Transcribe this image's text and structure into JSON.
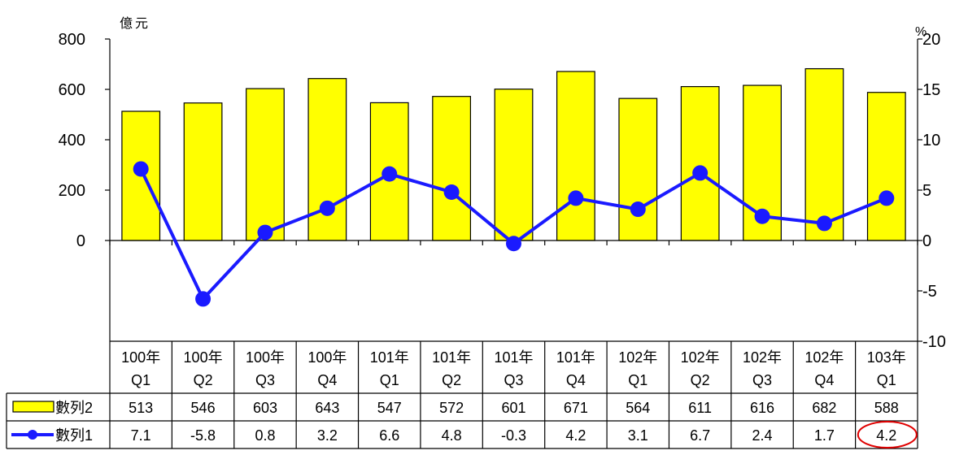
{
  "chart_data": {
    "type": "bar",
    "categories": [
      [
        "100年",
        "Q1"
      ],
      [
        "100年",
        "Q2"
      ],
      [
        "100年",
        "Q3"
      ],
      [
        "100年",
        "Q4"
      ],
      [
        "101年",
        "Q1"
      ],
      [
        "101年",
        "Q2"
      ],
      [
        "101年",
        "Q3"
      ],
      [
        "101年",
        "Q4"
      ],
      [
        "102年",
        "Q1"
      ],
      [
        "102年",
        "Q2"
      ],
      [
        "102年",
        "Q3"
      ],
      [
        "102年",
        "Q4"
      ],
      [
        "103年",
        "Q1"
      ]
    ],
    "series": [
      {
        "name": "數列2",
        "type": "bar",
        "axis": "left",
        "color": "#ffff00",
        "values": [
          513,
          546,
          603,
          643,
          547,
          572,
          601,
          671,
          564,
          611,
          616,
          682,
          588
        ],
        "labels": [
          "513",
          "546",
          "603",
          "643",
          "547",
          "572",
          "601",
          "671",
          "564",
          "611",
          "616",
          "682",
          "588"
        ]
      },
      {
        "name": "數列1",
        "type": "line",
        "axis": "right",
        "color": "#1a1aff",
        "values": [
          7.1,
          -5.8,
          0.8,
          3.2,
          6.6,
          4.8,
          -0.3,
          4.2,
          3.1,
          6.7,
          2.4,
          1.7,
          4.2
        ],
        "labels": [
          "7.1",
          "-5.8",
          "0.8",
          "3.2",
          "6.6",
          "4.8",
          "-0.3",
          "4.2",
          "3.1",
          "6.7",
          "2.4",
          "1.7",
          "4.2"
        ]
      }
    ],
    "left_axis": {
      "unit": "億元",
      "ylim": [
        -400,
        800
      ],
      "ticks": [
        0,
        200,
        400,
        600,
        800
      ],
      "tick_labels": [
        "0",
        "200",
        "400",
        "600",
        "800"
      ]
    },
    "right_axis": {
      "unit": "%",
      "ylim": [
        -10,
        20
      ],
      "ticks": [
        -10,
        -5,
        0,
        5,
        10,
        15,
        20
      ],
      "tick_labels": [
        "-10",
        "-5",
        "0",
        "5",
        "10",
        "15",
        "20"
      ]
    },
    "highlight": {
      "series": 1,
      "index": 12,
      "color": "#e00000"
    },
    "legend": "data-table"
  }
}
